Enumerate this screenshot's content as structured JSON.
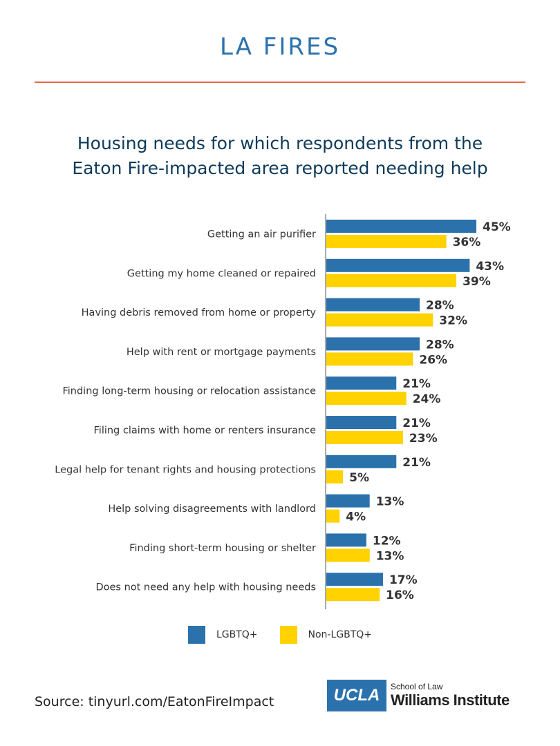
{
  "header": {
    "title": "LA FIRES"
  },
  "chart_data": {
    "type": "bar",
    "orientation": "horizontal",
    "title": "Housing needs for which respondents from the Eaton Fire-impacted area reported needing help",
    "categories": [
      "Getting an air purifier",
      "Getting my home cleaned or repaired",
      "Having debris removed from home or property",
      "Help with rent or mortgage payments",
      "Finding long-term housing or relocation assistance",
      "Filing claims with home or renters insurance",
      "Legal help for tenant rights and housing protections",
      "Help solving disagreements with landlord",
      "Finding short-term housing or shelter",
      "Does not need any help with housing needs"
    ],
    "series": [
      {
        "name": "LGBTQ+",
        "color": "#2b72ad",
        "values": [
          45,
          43,
          28,
          28,
          21,
          21,
          21,
          13,
          12,
          17
        ]
      },
      {
        "name": "Non-LGBTQ+",
        "color": "#ffd200",
        "values": [
          36,
          39,
          32,
          26,
          24,
          23,
          5,
          4,
          13,
          16
        ]
      }
    ],
    "value_suffix": "%",
    "xlim": [
      0,
      50
    ],
    "grid": false,
    "legend_position": "bottom-center"
  },
  "footer": {
    "source": "Source: tinyurl.com/EatonFireImpact",
    "logo_ucla": "UCLA",
    "logo_school": "School of Law",
    "logo_institute": "Williams Institute"
  }
}
